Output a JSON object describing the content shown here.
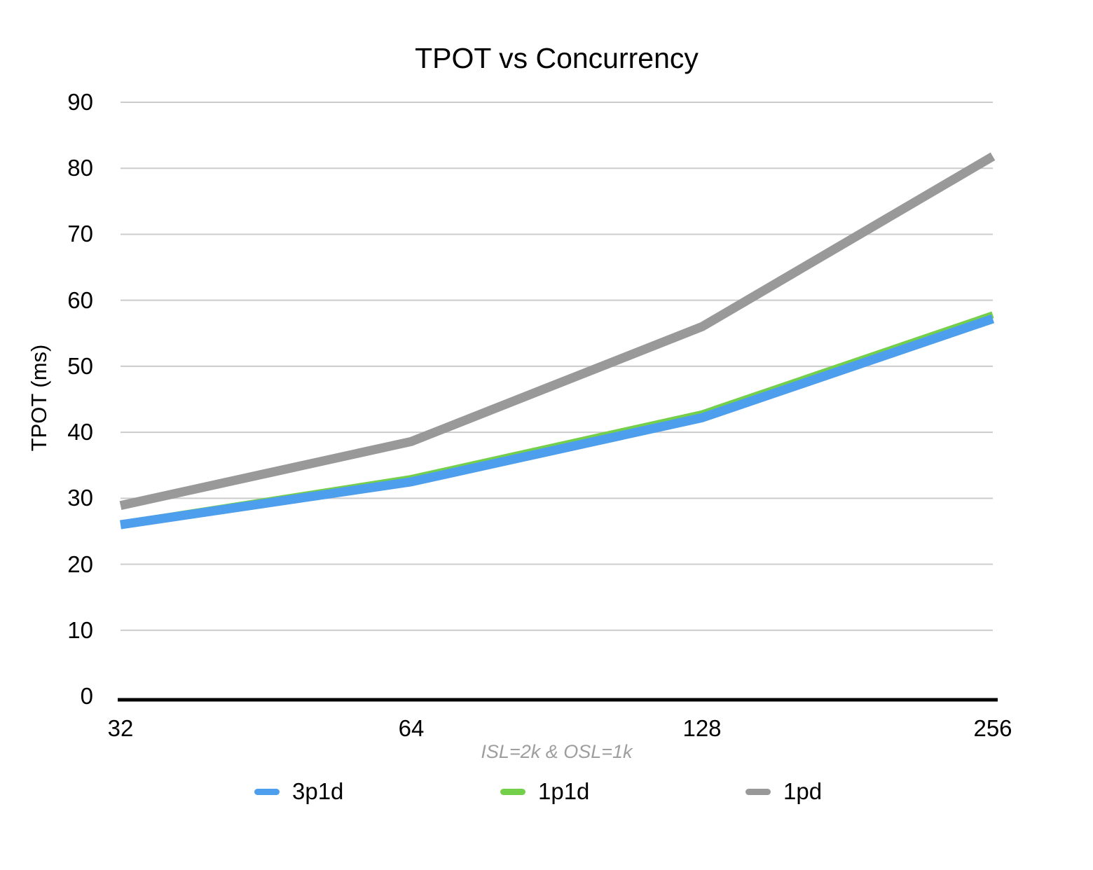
{
  "chart_data": {
    "type": "line",
    "title": "TPOT vs Concurrency",
    "ylabel": "TPOT (ms)",
    "xlabel": "ISL=2k & OSL=1k",
    "x_scale": "log2",
    "categories": [
      "32",
      "64",
      "128",
      "256"
    ],
    "y_ticks": [
      0,
      10,
      20,
      30,
      40,
      50,
      60,
      70,
      80,
      90
    ],
    "ylim": [
      0,
      90
    ],
    "grid": "horizontal",
    "legend_position": "bottom",
    "series": [
      {
        "name": "3p1d",
        "color": "#4D9EEC",
        "line_width": 13,
        "values": [
          26.0,
          32.5,
          42.2,
          57.2
        ]
      },
      {
        "name": "1p1d",
        "color": "#74D04A",
        "line_width": 10,
        "values": [
          26.1,
          33.0,
          42.8,
          57.8
        ]
      },
      {
        "name": "1pd",
        "color": "#999999",
        "line_width": 13,
        "values": [
          28.9,
          38.6,
          56.0,
          81.8
        ]
      }
    ],
    "draw_order": [
      1,
      0,
      2
    ],
    "colors": {
      "gridline": "#CCCCCC",
      "axis_line": "#000000",
      "subtitle_text": "#9E9E9E",
      "text": "#000000",
      "background": "#FFFFFF"
    }
  }
}
